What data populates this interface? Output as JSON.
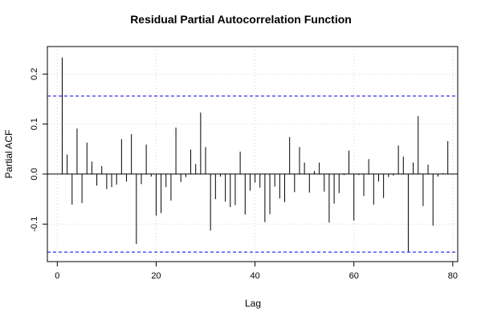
{
  "chart_data": {
    "type": "bar",
    "title": "Residual Partial Autocorrelation Function",
    "xlabel": "Lag",
    "ylabel": "Partial ACF",
    "xlim": [
      -2,
      81
    ],
    "ylim": [
      -0.175,
      0.255
    ],
    "x_ticks": [
      "0",
      "20",
      "40",
      "60",
      "80"
    ],
    "y_ticks": [
      "-0.1",
      "0.0",
      "0.1",
      "0.2"
    ],
    "confidence_band": 0.156,
    "grid": true,
    "colors": {
      "bars": "#000000",
      "confidence": "#0000ff",
      "grid": "#d3d3d3",
      "zero_line": "#000000"
    },
    "lags": [
      1,
      2,
      3,
      4,
      5,
      6,
      7,
      8,
      9,
      10,
      11,
      12,
      13,
      14,
      15,
      16,
      17,
      18,
      19,
      20,
      21,
      22,
      23,
      24,
      25,
      26,
      27,
      28,
      29,
      30,
      31,
      32,
      33,
      34,
      35,
      36,
      37,
      38,
      39,
      40,
      41,
      42,
      43,
      44,
      45,
      46,
      47,
      48,
      49,
      50,
      51,
      52,
      53,
      54,
      55,
      56,
      57,
      58,
      59,
      60,
      61,
      62,
      63,
      64,
      65,
      66,
      67,
      68,
      69,
      70,
      71,
      72,
      73,
      74,
      75,
      76,
      77,
      78,
      79
    ],
    "values": [
      0.233,
      0.039,
      -0.061,
      0.091,
      -0.058,
      0.063,
      0.025,
      -0.023,
      0.016,
      -0.03,
      -0.026,
      -0.021,
      0.07,
      -0.015,
      0.08,
      -0.14,
      -0.02,
      0.059,
      -0.005,
      -0.083,
      -0.078,
      -0.026,
      -0.053,
      0.093,
      -0.016,
      -0.006,
      0.049,
      0.02,
      0.123,
      0.054,
      -0.113,
      -0.05,
      -0.005,
      -0.055,
      -0.066,
      -0.062,
      0.045,
      -0.081,
      -0.033,
      -0.017,
      -0.027,
      -0.096,
      -0.08,
      -0.025,
      -0.049,
      -0.056,
      0.074,
      -0.036,
      0.054,
      0.023,
      -0.037,
      0.006,
      0.023,
      -0.035,
      -0.097,
      -0.059,
      -0.038,
      -0.002,
      0.047,
      -0.093,
      -0.002,
      -0.044,
      0.03,
      -0.061,
      -0.015,
      -0.048,
      -0.006,
      -0.003,
      0.057,
      0.035,
      -0.155,
      0.023,
      0.116,
      -0.064,
      0.019,
      -0.103,
      -0.005,
      0.002,
      0.066
    ]
  }
}
